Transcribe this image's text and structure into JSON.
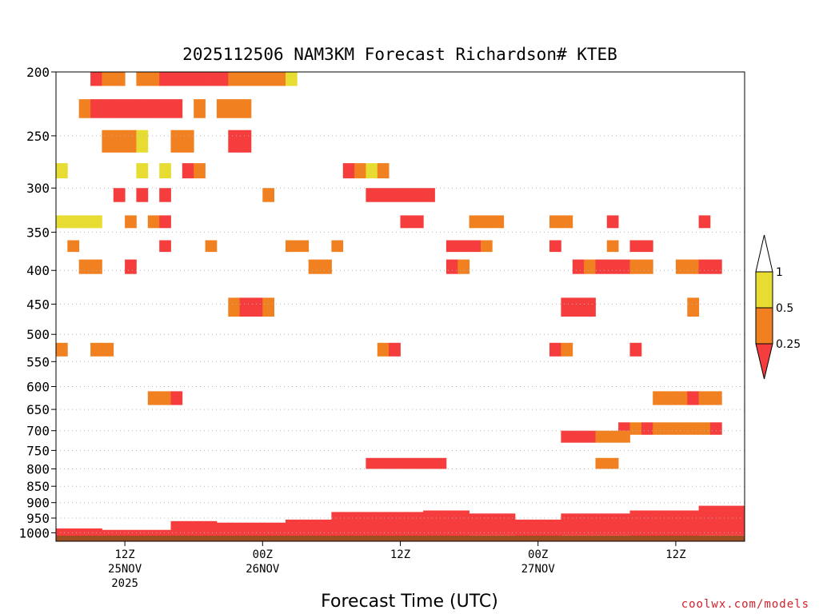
{
  "chart_data": {
    "type": "heatmap",
    "title": "2025112506 NAM3KM Forecast Richardson# KTEB",
    "xlabel": "Forecast Time (UTC)",
    "ylabel": "",
    "credit": "coolwx.com/models",
    "y_scale": "log-pressure",
    "ylim": [
      1030,
      200
    ],
    "yticks": [
      200,
      250,
      300,
      350,
      400,
      450,
      500,
      550,
      600,
      650,
      700,
      750,
      800,
      850,
      900,
      950,
      1000
    ],
    "x_forecast_hours_range": [
      0,
      60
    ],
    "x_ticks": [
      {
        "hour": 6,
        "l1": "12Z",
        "l2": "25NOV",
        "l3": "2025"
      },
      {
        "hour": 18,
        "l1": "00Z",
        "l2": "26NOV",
        "l3": ""
      },
      {
        "hour": 30,
        "l1": "12Z",
        "l2": "",
        "l3": ""
      },
      {
        "hour": 42,
        "l1": "00Z",
        "l2": "27NOV",
        "l3": ""
      },
      {
        "hour": 54,
        "l1": "12Z",
        "l2": "",
        "l3": ""
      }
    ],
    "colorbar": {
      "levels": [
        "1",
        "0.5",
        "0.25"
      ],
      "colors": {
        "lt_025": "#f53d3d",
        "r_025_05": "#f08020",
        "r_05_1": "#e6dc32",
        "gt_1": "#ffffff"
      }
    },
    "ground_color": "#a04f22",
    "grid_dotted": true,
    "cells": [
      [
        3,
        200,
        210,
        1
      ],
      [
        4,
        200,
        210,
        2
      ],
      [
        5,
        200,
        210,
        2
      ],
      [
        7,
        200,
        210,
        2
      ],
      [
        8,
        200,
        210,
        2
      ],
      [
        9,
        200,
        210,
        1
      ],
      [
        10,
        200,
        210,
        1
      ],
      [
        11,
        200,
        210,
        1
      ],
      [
        12,
        200,
        210,
        1
      ],
      [
        13,
        200,
        210,
        1
      ],
      [
        14,
        200,
        210,
        1
      ],
      [
        15,
        200,
        210,
        2
      ],
      [
        16,
        200,
        210,
        2
      ],
      [
        17,
        200,
        210,
        2
      ],
      [
        18,
        200,
        210,
        2
      ],
      [
        19,
        200,
        210,
        2
      ],
      [
        20,
        200,
        210,
        3
      ],
      [
        2,
        220,
        235,
        2
      ],
      [
        3,
        220,
        235,
        1
      ],
      [
        4,
        220,
        235,
        1
      ],
      [
        5,
        220,
        235,
        1
      ],
      [
        6,
        220,
        235,
        1
      ],
      [
        7,
        220,
        235,
        1
      ],
      [
        8,
        220,
        235,
        1
      ],
      [
        9,
        220,
        235,
        1
      ],
      [
        10,
        220,
        235,
        1
      ],
      [
        12,
        220,
        235,
        2
      ],
      [
        14,
        220,
        235,
        2
      ],
      [
        15,
        220,
        235,
        2
      ],
      [
        16,
        220,
        235,
        2
      ],
      [
        4,
        245,
        265,
        2
      ],
      [
        5,
        245,
        265,
        2
      ],
      [
        6,
        245,
        265,
        2
      ],
      [
        7,
        245,
        265,
        3
      ],
      [
        10,
        245,
        265,
        2
      ],
      [
        11,
        245,
        265,
        2
      ],
      [
        15,
        245,
        265,
        1
      ],
      [
        16,
        245,
        265,
        1
      ],
      [
        0,
        275,
        290,
        3
      ],
      [
        7,
        275,
        290,
        3
      ],
      [
        9,
        275,
        290,
        3
      ],
      [
        11,
        275,
        290,
        1
      ],
      [
        12,
        275,
        290,
        2
      ],
      [
        25,
        275,
        290,
        1
      ],
      [
        26,
        275,
        290,
        2
      ],
      [
        27,
        275,
        290,
        3
      ],
      [
        28,
        275,
        290,
        2
      ],
      [
        5,
        300,
        315,
        1
      ],
      [
        7,
        300,
        315,
        1
      ],
      [
        9,
        300,
        315,
        1
      ],
      [
        18,
        300,
        315,
        2
      ],
      [
        27,
        300,
        315,
        1
      ],
      [
        28,
        300,
        315,
        1
      ],
      [
        29,
        300,
        315,
        1
      ],
      [
        30,
        300,
        315,
        1
      ],
      [
        31,
        300,
        315,
        1
      ],
      [
        32,
        300,
        315,
        1
      ],
      [
        0,
        330,
        345,
        3
      ],
      [
        1,
        330,
        345,
        3
      ],
      [
        2,
        330,
        345,
        3
      ],
      [
        3,
        330,
        345,
        3
      ],
      [
        6,
        330,
        345,
        2
      ],
      [
        8,
        330,
        345,
        2
      ],
      [
        9,
        330,
        345,
        1
      ],
      [
        30,
        330,
        345,
        1
      ],
      [
        31,
        330,
        345,
        1
      ],
      [
        36,
        330,
        345,
        2
      ],
      [
        37,
        330,
        345,
        2
      ],
      [
        38,
        330,
        345,
        2
      ],
      [
        43,
        330,
        345,
        2
      ],
      [
        44,
        330,
        345,
        2
      ],
      [
        48,
        330,
        345,
        1
      ],
      [
        56,
        330,
        345,
        1
      ],
      [
        1,
        360,
        375,
        2
      ],
      [
        9,
        360,
        375,
        1
      ],
      [
        13,
        360,
        375,
        2
      ],
      [
        20,
        360,
        375,
        2
      ],
      [
        21,
        360,
        375,
        2
      ],
      [
        24,
        360,
        375,
        2
      ],
      [
        34,
        360,
        375,
        1
      ],
      [
        35,
        360,
        375,
        1
      ],
      [
        36,
        360,
        375,
        1
      ],
      [
        37,
        360,
        375,
        2
      ],
      [
        43,
        360,
        375,
        1
      ],
      [
        48,
        360,
        375,
        2
      ],
      [
        50,
        360,
        375,
        1
      ],
      [
        51,
        360,
        375,
        1
      ],
      [
        2,
        385,
        405,
        2
      ],
      [
        3,
        385,
        405,
        2
      ],
      [
        6,
        385,
        405,
        1
      ],
      [
        22,
        385,
        405,
        2
      ],
      [
        23,
        385,
        405,
        2
      ],
      [
        34,
        385,
        405,
        1
      ],
      [
        35,
        385,
        405,
        2
      ],
      [
        45,
        385,
        405,
        1
      ],
      [
        46,
        385,
        405,
        2
      ],
      [
        47,
        385,
        405,
        1
      ],
      [
        48,
        385,
        405,
        1
      ],
      [
        49,
        385,
        405,
        1
      ],
      [
        50,
        385,
        405,
        2
      ],
      [
        51,
        385,
        405,
        2
      ],
      [
        54,
        385,
        405,
        2
      ],
      [
        55,
        385,
        405,
        2
      ],
      [
        56,
        385,
        405,
        1
      ],
      [
        57,
        385,
        405,
        1
      ],
      [
        15,
        440,
        470,
        2
      ],
      [
        16,
        440,
        470,
        1
      ],
      [
        17,
        440,
        470,
        1
      ],
      [
        18,
        440,
        470,
        2
      ],
      [
        44,
        440,
        470,
        1
      ],
      [
        45,
        440,
        470,
        1
      ],
      [
        46,
        440,
        470,
        1
      ],
      [
        55,
        440,
        470,
        2
      ],
      [
        0,
        515,
        540,
        2
      ],
      [
        3,
        515,
        540,
        2
      ],
      [
        4,
        515,
        540,
        2
      ],
      [
        28,
        515,
        540,
        2
      ],
      [
        29,
        515,
        540,
        1
      ],
      [
        43,
        515,
        540,
        1
      ],
      [
        44,
        515,
        540,
        2
      ],
      [
        50,
        515,
        540,
        1
      ],
      [
        8,
        610,
        640,
        2
      ],
      [
        9,
        610,
        640,
        2
      ],
      [
        10,
        610,
        640,
        1
      ],
      [
        52,
        610,
        640,
        2
      ],
      [
        53,
        610,
        640,
        2
      ],
      [
        54,
        610,
        640,
        2
      ],
      [
        55,
        610,
        640,
        1
      ],
      [
        56,
        610,
        640,
        2
      ],
      [
        57,
        610,
        640,
        2
      ],
      [
        49,
        680,
        710,
        1
      ],
      [
        50,
        680,
        710,
        2
      ],
      [
        51,
        680,
        710,
        1
      ],
      [
        52,
        680,
        710,
        2
      ],
      [
        53,
        680,
        710,
        2
      ],
      [
        54,
        680,
        710,
        2
      ],
      [
        55,
        680,
        710,
        2
      ],
      [
        56,
        680,
        710,
        2
      ],
      [
        57,
        680,
        710,
        1
      ],
      [
        44,
        700,
        730,
        1
      ],
      [
        45,
        700,
        730,
        1
      ],
      [
        46,
        700,
        730,
        1
      ],
      [
        47,
        700,
        730,
        2
      ],
      [
        48,
        700,
        730,
        2
      ],
      [
        49,
        700,
        730,
        2
      ],
      [
        27,
        770,
        800,
        1
      ],
      [
        28,
        770,
        800,
        1
      ],
      [
        29,
        770,
        800,
        1
      ],
      [
        30,
        770,
        800,
        1
      ],
      [
        31,
        770,
        800,
        1
      ],
      [
        32,
        770,
        800,
        1
      ],
      [
        33,
        770,
        800,
        1
      ],
      [
        47,
        770,
        800,
        2
      ],
      [
        48,
        770,
        800,
        2
      ]
    ],
    "boundary_layer": [
      {
        "hour_from": 0,
        "hour_to": 4,
        "top_hpa": 985
      },
      {
        "hour_from": 4,
        "hour_to": 10,
        "top_hpa": 990
      },
      {
        "hour_from": 10,
        "hour_to": 14,
        "top_hpa": 960
      },
      {
        "hour_from": 14,
        "hour_to": 20,
        "top_hpa": 965
      },
      {
        "hour_from": 20,
        "hour_to": 24,
        "top_hpa": 955
      },
      {
        "hour_from": 24,
        "hour_to": 32,
        "top_hpa": 930
      },
      {
        "hour_from": 32,
        "hour_to": 36,
        "top_hpa": 925
      },
      {
        "hour_from": 36,
        "hour_to": 40,
        "top_hpa": 935
      },
      {
        "hour_from": 40,
        "hour_to": 44,
        "top_hpa": 955
      },
      {
        "hour_from": 44,
        "hour_to": 50,
        "top_hpa": 935
      },
      {
        "hour_from": 50,
        "hour_to": 56,
        "top_hpa": 925
      },
      {
        "hour_from": 56,
        "hour_to": 60,
        "top_hpa": 910
      }
    ],
    "ground_top_hpa": 1010
  }
}
